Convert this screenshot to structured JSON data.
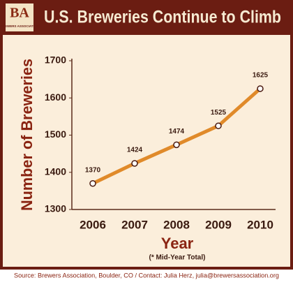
{
  "chart_data": {
    "type": "line",
    "title": "U.S. Breweries Continue to Climb",
    "logo": {
      "mark": "BA",
      "text": "BREWERS ASSOCIATION"
    },
    "y_label": "Number of Breweries",
    "x_label": "Year",
    "note": "(* Mid-Year Total)",
    "source": "Source: Brewers Association, Boulder, CO  /  Contact: Julia Herz, julia@brewersassociation.org",
    "categories": [
      "2006",
      "2007",
      "2008",
      "2009",
      "2010"
    ],
    "series": [
      {
        "name": "Breweries",
        "color": "#e08a2a",
        "values": [
          1370,
          1424,
          1474,
          1525,
          1625
        ]
      }
    ],
    "ylim": [
      1300,
      1700
    ],
    "yticks": [
      1300,
      1400,
      1500,
      1600,
      1700
    ],
    "grid": false
  }
}
